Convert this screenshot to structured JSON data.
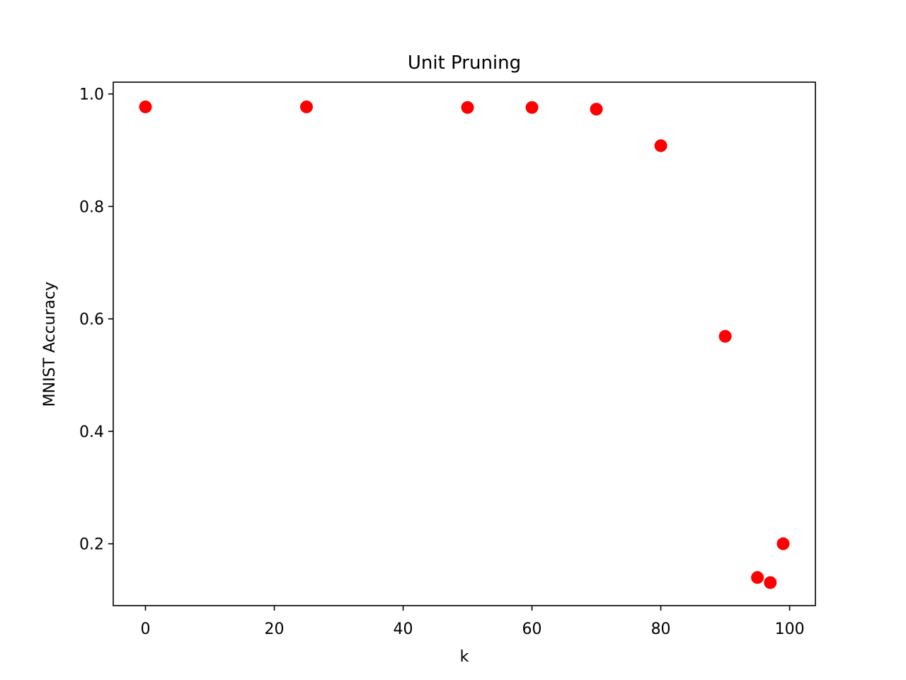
{
  "chart_data": {
    "type": "scatter",
    "title": "Unit Pruning",
    "xlabel": "k",
    "ylabel": "MNIST Accuracy",
    "xlim": [
      -5,
      104
    ],
    "ylim": [
      0.09,
      1.021
    ],
    "x_ticks": [
      0,
      20,
      40,
      60,
      80,
      100
    ],
    "y_ticks": [
      0.2,
      0.4,
      0.6,
      0.8,
      1.0
    ],
    "x_tick_labels": [
      "0",
      "20",
      "40",
      "60",
      "80",
      "100"
    ],
    "y_tick_labels": [
      "0.2",
      "0.4",
      "0.6",
      "0.8",
      "1.0"
    ],
    "grid": false,
    "marker_color": "#ff0000",
    "points": [
      {
        "x": 0,
        "y": 0.977
      },
      {
        "x": 25,
        "y": 0.977
      },
      {
        "x": 50,
        "y": 0.976
      },
      {
        "x": 60,
        "y": 0.976
      },
      {
        "x": 70,
        "y": 0.973
      },
      {
        "x": 80,
        "y": 0.908
      },
      {
        "x": 90,
        "y": 0.569
      },
      {
        "x": 95,
        "y": 0.14
      },
      {
        "x": 97,
        "y": 0.131
      },
      {
        "x": 99,
        "y": 0.2
      }
    ]
  }
}
